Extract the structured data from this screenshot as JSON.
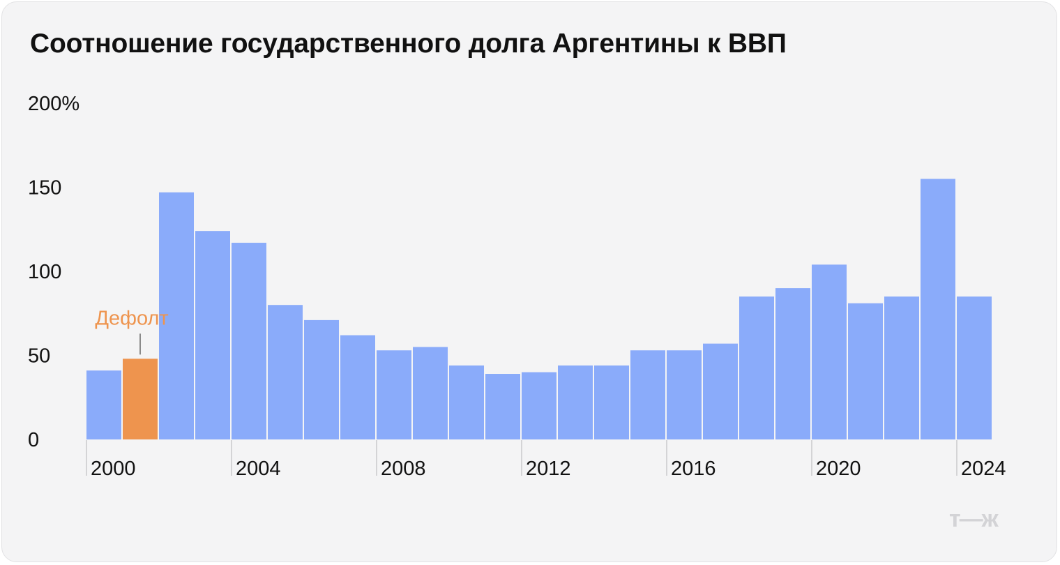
{
  "title": "Соотношение государственного долга Аргентины к ВВП",
  "logo": "т—ж",
  "colors": {
    "bar": "#8aabfa",
    "highlight": "#ee944e",
    "text": "#111111",
    "axis": "#c9c9cc",
    "background": "#f4f4f5"
  },
  "chart_data": {
    "type": "bar",
    "title": "Соотношение государственного долга Аргентины к ВВП",
    "xlabel": "",
    "ylabel": "",
    "ylim": [
      0,
      200
    ],
    "grid": false,
    "y_ticks": [
      {
        "value": 0,
        "label": "0"
      },
      {
        "value": 50,
        "label": "50"
      },
      {
        "value": 100,
        "label": "100"
      },
      {
        "value": 150,
        "label": "150"
      },
      {
        "value": 200,
        "label": "200%"
      }
    ],
    "x_ticks": [
      "2000",
      "2004",
      "2008",
      "2012",
      "2016",
      "2020",
      "2024"
    ],
    "categories": [
      2000,
      2001,
      2002,
      2003,
      2004,
      2005,
      2006,
      2007,
      2008,
      2009,
      2010,
      2011,
      2012,
      2013,
      2014,
      2015,
      2016,
      2017,
      2018,
      2019,
      2020,
      2021,
      2022,
      2023,
      2024
    ],
    "values": [
      41,
      48,
      147,
      124,
      117,
      80,
      71,
      62,
      53,
      55,
      44,
      39,
      40,
      44,
      44,
      53,
      53,
      57,
      85,
      90,
      104,
      81,
      85,
      155,
      85
    ],
    "highlight": {
      "year": 2001,
      "label": "Дефолт"
    }
  }
}
